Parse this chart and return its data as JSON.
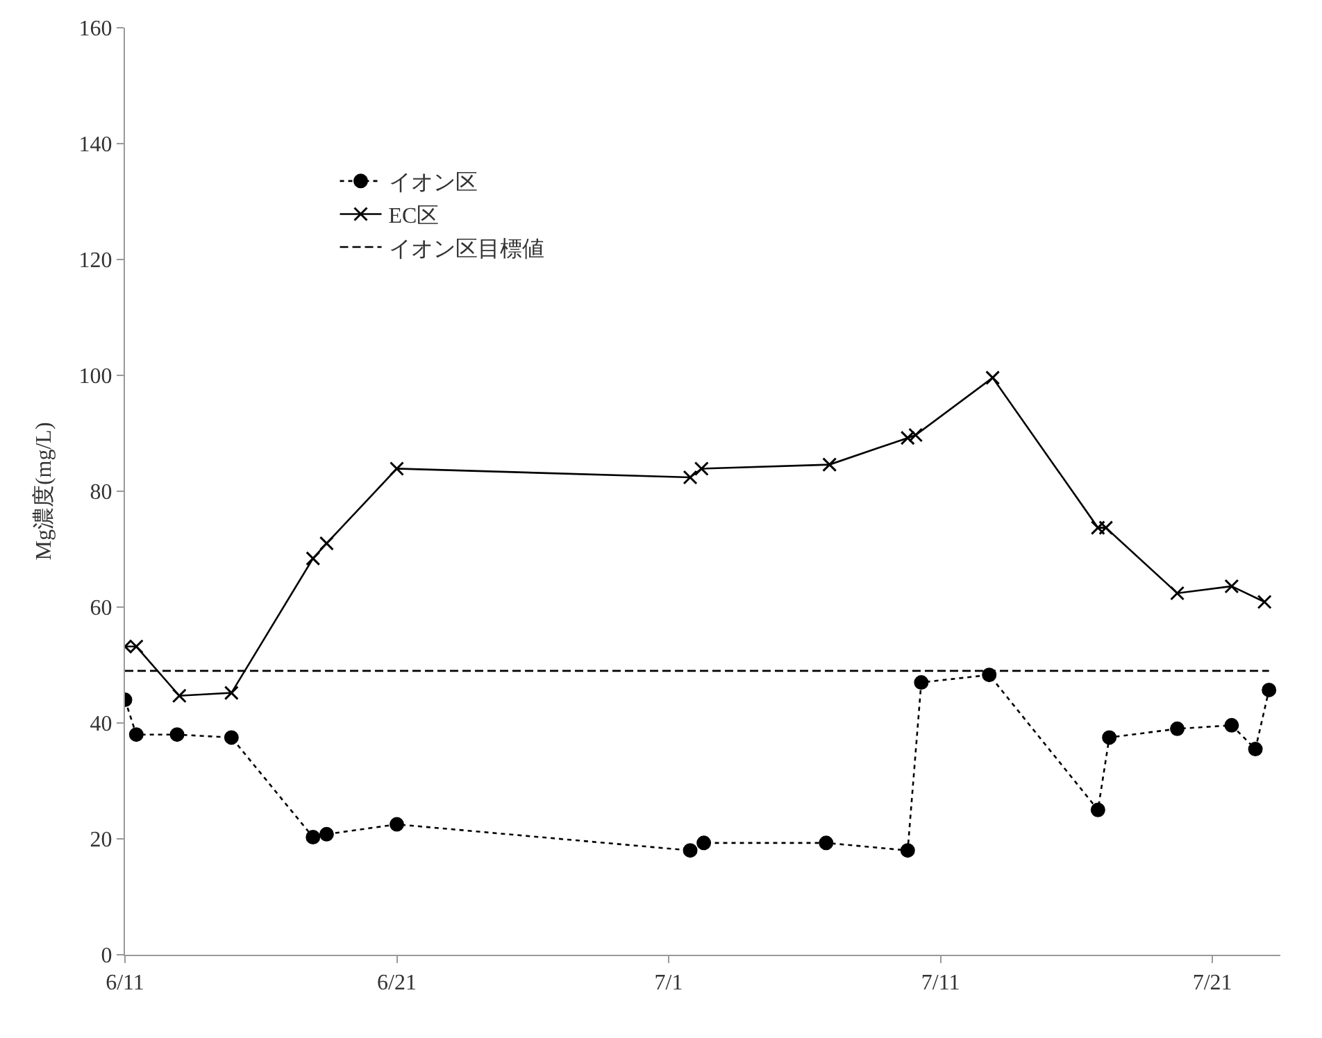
{
  "chart_data": {
    "type": "line",
    "ylabel": "Mg濃度(mg/L)",
    "xlim": [
      "--06-11",
      "--07-23T12:00"
    ],
    "xticks": [
      {
        "value": "--06-11",
        "label": "6/11"
      },
      {
        "value": "--06-21",
        "label": "6/21"
      },
      {
        "value": "--07-01",
        "label": "7/1"
      },
      {
        "value": "--07-11",
        "label": "7/11"
      },
      {
        "value": "--07-21",
        "label": "7/21"
      }
    ],
    "ylim": [
      0,
      160
    ],
    "yticks": [
      0,
      20,
      40,
      60,
      80,
      100,
      120,
      140,
      160
    ],
    "legend": "top left",
    "series": [
      {
        "name": "イオン区",
        "color": "#000000",
        "marker": "circle",
        "line_style": "dotted",
        "x": [
          "--06-11T00:00",
          "--06-11T10:00",
          "--06-12T22:00",
          "--06-14T22:00",
          "--06-17T22:00",
          "--06-18T10:00",
          "--06-21T00:00",
          "--07-01T19:00",
          "--07-02T07:00",
          "--07-06T19:00",
          "--07-09T19:00",
          "--07-10T07:00",
          "--07-12T19:00",
          "--07-16T19:00",
          "--07-17T05:00",
          "--07-19T17:00",
          "--07-21T17:00",
          "--07-22T14:00",
          "--07-23T02:00"
        ],
        "values": [
          44,
          38,
          38,
          37.5,
          20.3,
          20.8,
          22.5,
          18,
          19.3,
          19.3,
          18,
          47,
          48.3,
          25,
          37.5,
          39,
          39.6,
          35.5,
          45.7
        ]
      },
      {
        "name": "EC区",
        "color": "#000000",
        "marker": "cross",
        "line_style": "solid",
        "x": [
          "--06-11T00:00",
          "--06-11T10:00",
          "--06-13T00:00",
          "--06-14T22:00",
          "--06-17T22:00",
          "--06-18T10:00",
          "--06-21T00:00",
          "--07-01T19:00",
          "--07-02T05:00",
          "--07-06T22:00",
          "--07-09T19:00",
          "--07-10T02:00",
          "--07-12T22:00",
          "--07-16T19:00",
          "--07-17T02:00",
          "--07-19T17:00",
          "--07-21T17:00",
          "--07-22T22:00"
        ],
        "values": [
          53.2,
          53.2,
          44.7,
          45.2,
          68.4,
          71,
          83.9,
          82.4,
          83.9,
          84.6,
          89.2,
          89.7,
          99.6,
          73.7,
          73.7,
          62.4,
          63.6,
          60.9
        ]
      },
      {
        "name": "イオン区目標値",
        "color": "#000000",
        "marker": "none",
        "line_style": "dashed",
        "x": [
          "--06-11T00:00",
          "--07-23T02:00"
        ],
        "values": [
          49,
          49
        ]
      }
    ]
  }
}
